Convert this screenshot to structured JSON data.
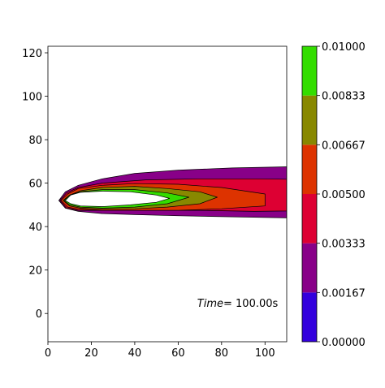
{
  "chart_data": {
    "type": "contour",
    "title": "",
    "xlabel": "",
    "ylabel": "",
    "xlim": [
      0,
      110
    ],
    "ylim": [
      -13,
      123
    ],
    "x_ticks": [
      0,
      20,
      40,
      60,
      80,
      100
    ],
    "y_ticks": [
      0,
      20,
      40,
      60,
      80,
      100,
      120
    ],
    "annotation": {
      "prefix": "Time",
      "value": "= 100.00s",
      "x": 106,
      "y": 3
    },
    "colorbar": {
      "levels": [
        0.0,
        0.00167,
        0.00333,
        0.005,
        0.00667,
        0.00833,
        0.01
      ],
      "tick_labels": [
        "0.00000",
        "0.00167",
        "0.00333",
        "0.00500",
        "0.00667",
        "0.00833",
        "0.01000"
      ],
      "colors": [
        "#3300dd",
        "#880088",
        "#dd0033",
        "#dd3300",
        "#888800",
        "#33dd00"
      ]
    },
    "contours": [
      {
        "level": "0.00167-0.00333",
        "color": "#880088",
        "points": [
          [
            5,
            52
          ],
          [
            8,
            56
          ],
          [
            14,
            59
          ],
          [
            25,
            62
          ],
          [
            40,
            64.5
          ],
          [
            60,
            66
          ],
          [
            85,
            67
          ],
          [
            110,
            67.5
          ],
          [
            110,
            44
          ],
          [
            85,
            44.5
          ],
          [
            60,
            45
          ],
          [
            40,
            45.5
          ],
          [
            25,
            46
          ],
          [
            14,
            47
          ],
          [
            8,
            48.5
          ]
        ]
      },
      {
        "level": "0.00333-0.00500",
        "color": "#dd0033",
        "points": [
          [
            5.5,
            52
          ],
          [
            8.5,
            55.5
          ],
          [
            14,
            58
          ],
          [
            25,
            60
          ],
          [
            45,
            61.5
          ],
          [
            70,
            62
          ],
          [
            95,
            62
          ],
          [
            110,
            61.8
          ],
          [
            110,
            47.2
          ],
          [
            95,
            47
          ],
          [
            70,
            47.5
          ],
          [
            45,
            47.5
          ],
          [
            25,
            47.5
          ],
          [
            14,
            47.5
          ],
          [
            8.5,
            48.5
          ]
        ]
      },
      {
        "level": "0.00500-0.00667",
        "color": "#dd3300",
        "points": [
          [
            6,
            52
          ],
          [
            9,
            55
          ],
          [
            14,
            57.5
          ],
          [
            25,
            59
          ],
          [
            40,
            59.8
          ],
          [
            60,
            59.5
          ],
          [
            80,
            58
          ],
          [
            100,
            55
          ],
          [
            100,
            49.5
          ],
          [
            80,
            48.2
          ],
          [
            60,
            47.5
          ],
          [
            40,
            47.5
          ],
          [
            25,
            47.5
          ],
          [
            14,
            48
          ],
          [
            9,
            49
          ]
        ]
      },
      {
        "level": "0.00667-0.00833",
        "color": "#888800",
        "points": [
          [
            7,
            52
          ],
          [
            10,
            54.5
          ],
          [
            15,
            56.5
          ],
          [
            25,
            58
          ],
          [
            40,
            58.5
          ],
          [
            55,
            57.5
          ],
          [
            70,
            56
          ],
          [
            78,
            53.5
          ],
          [
            70,
            50.5
          ],
          [
            55,
            49
          ],
          [
            40,
            48.2
          ],
          [
            25,
            48
          ],
          [
            15,
            48.5
          ],
          [
            10,
            49.5
          ]
        ]
      },
      {
        "level": "0.00833-0.01000",
        "color": "#33dd00",
        "points": [
          [
            7.5,
            52
          ],
          [
            10,
            54.5
          ],
          [
            15,
            56
          ],
          [
            25,
            57
          ],
          [
            40,
            57
          ],
          [
            55,
            55.5
          ],
          [
            65,
            53.5
          ],
          [
            55,
            50.5
          ],
          [
            40,
            49
          ],
          [
            25,
            48.5
          ],
          [
            15,
            49
          ],
          [
            10,
            50
          ]
        ]
      },
      {
        "level": "above",
        "color": "#ffffff",
        "points": [
          [
            8,
            52
          ],
          [
            10.5,
            54.5
          ],
          [
            15,
            55.8
          ],
          [
            25,
            56.3
          ],
          [
            38,
            56
          ],
          [
            50,
            54.5
          ],
          [
            56,
            53
          ],
          [
            50,
            51.2
          ],
          [
            38,
            50
          ],
          [
            25,
            49.2
          ],
          [
            15,
            49.5
          ],
          [
            10.5,
            50.5
          ]
        ]
      }
    ]
  }
}
